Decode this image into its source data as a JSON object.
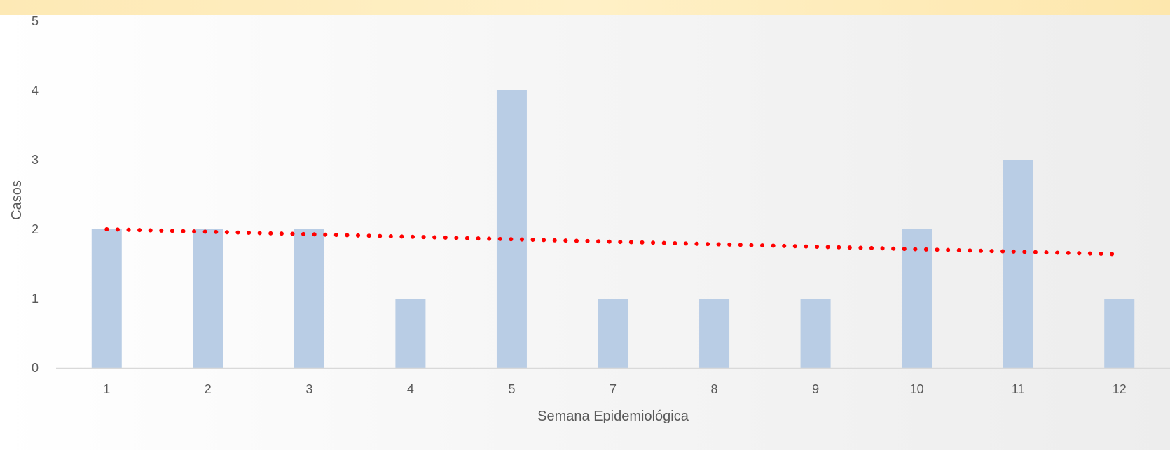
{
  "chart_data": {
    "type": "bar",
    "categories": [
      "1",
      "2",
      "3",
      "4",
      "5",
      "7",
      "8",
      "9",
      "10",
      "11",
      "12"
    ],
    "values": [
      2,
      2,
      2,
      1,
      4,
      1,
      1,
      1,
      2,
      3,
      1
    ],
    "trendline": {
      "type": "linear",
      "start": 2.0,
      "end": 1.64,
      "color": "#ff0000",
      "style": "dotted"
    },
    "xlabel": "Semana Epidemiológica",
    "ylabel": "Casos",
    "ylim": [
      0,
      5
    ],
    "yticks": [
      "0",
      "1",
      "2",
      "3",
      "4",
      "5"
    ],
    "grid": false,
    "bar_color": "#b9cde5"
  }
}
